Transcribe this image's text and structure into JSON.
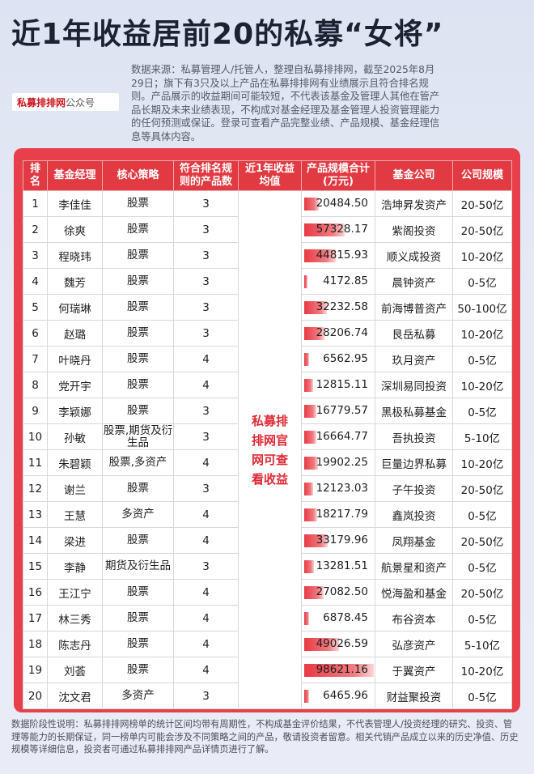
{
  "title": "近1年收益居前20的私募“女将”",
  "source_note": "数据来源：私募管理人/托管人，整理自私募排排网，截至2025年8月29日；旗下有3只及以上产品在私募排排网有业绩展示且符合排名规则。产品展示的收益期间可能较短，不代表该基金及管理人其他在管产品长期及未来业绩表现，不构成对基金经理及基金管理人投资管理能力的任何预测或保证。登录可查看产品完整业绩、产品规模、基金经理信息等具体内容。",
  "logo": {
    "brand": "私募排排网",
    "suffix": "公众号"
  },
  "colors": {
    "accent": "#e23a43",
    "note_text": "#e02a35"
  },
  "table": {
    "headers": [
      "排名",
      "基金经理",
      "核心策略",
      "符合排名规则的产品数",
      "近1年收益均值",
      "产品规模合计(万元)",
      "基金公司",
      "公司规模"
    ],
    "note_lines": [
      "私募排",
      "排网官",
      "网可查",
      "看收益"
    ],
    "rows": [
      {
        "rank": "1",
        "manager": "李佳佳",
        "strategy": "股票",
        "count": "3",
        "scale": "20484.50",
        "scale_value": 20484.5,
        "company": "浩坤昇发资产",
        "size": "20-50亿"
      },
      {
        "rank": "2",
        "manager": "徐爽",
        "strategy": "股票",
        "count": "3",
        "scale": "57328.17",
        "scale_value": 57328.17,
        "company": "紫阁投资",
        "size": "20-50亿"
      },
      {
        "rank": "3",
        "manager": "程晓玮",
        "strategy": "股票",
        "count": "3",
        "scale": "44815.93",
        "scale_value": 44815.93,
        "company": "顺义成投资",
        "size": "10-20亿"
      },
      {
        "rank": "4",
        "manager": "魏芳",
        "strategy": "股票",
        "count": "3",
        "scale": "4172.85",
        "scale_value": 4172.85,
        "company": "晨钟资产",
        "size": "0-5亿"
      },
      {
        "rank": "5",
        "manager": "何瑞琳",
        "strategy": "股票",
        "count": "3",
        "scale": "32232.58",
        "scale_value": 32232.58,
        "company": "前海博普资产",
        "size": "50-100亿"
      },
      {
        "rank": "6",
        "manager": "赵璐",
        "strategy": "股票",
        "count": "3",
        "scale": "28206.74",
        "scale_value": 28206.74,
        "company": "艮岳私募",
        "size": "10-20亿"
      },
      {
        "rank": "7",
        "manager": "叶晓丹",
        "strategy": "股票",
        "count": "4",
        "scale": "6562.95",
        "scale_value": 6562.95,
        "company": "玖月资产",
        "size": "0-5亿"
      },
      {
        "rank": "8",
        "manager": "党开宇",
        "strategy": "股票",
        "count": "4",
        "scale": "12815.11",
        "scale_value": 12815.11,
        "company": "深圳易同投资",
        "size": "10-20亿"
      },
      {
        "rank": "9",
        "manager": "李颖娜",
        "strategy": "股票",
        "count": "3",
        "scale": "16779.57",
        "scale_value": 16779.57,
        "company": "黑极私募基金",
        "size": "0-5亿"
      },
      {
        "rank": "10",
        "manager": "孙敏",
        "strategy": "股票,期货及衍生品",
        "count": "3",
        "scale": "16664.77",
        "scale_value": 16664.77,
        "company": "吾执投资",
        "size": "5-10亿"
      },
      {
        "rank": "11",
        "manager": "朱碧颖",
        "strategy": "股票,多资产",
        "count": "4",
        "scale": "19902.25",
        "scale_value": 19902.25,
        "company": "巨量边界私募",
        "size": "10-20亿"
      },
      {
        "rank": "12",
        "manager": "谢兰",
        "strategy": "股票",
        "count": "3",
        "scale": "12123.03",
        "scale_value": 12123.03,
        "company": "子午投资",
        "size": "20-50亿"
      },
      {
        "rank": "13",
        "manager": "王慧",
        "strategy": "多资产",
        "count": "4",
        "scale": "18217.79",
        "scale_value": 18217.79,
        "company": "鑫岚投资",
        "size": "0-5亿"
      },
      {
        "rank": "14",
        "manager": "梁进",
        "strategy": "股票",
        "count": "4",
        "scale": "33179.96",
        "scale_value": 33179.96,
        "company": "凤翔基金",
        "size": "20-50亿"
      },
      {
        "rank": "15",
        "manager": "李静",
        "strategy": "期货及衍生品",
        "count": "3",
        "scale": "13281.51",
        "scale_value": 13281.51,
        "company": "航景星和资产",
        "size": "0-5亿"
      },
      {
        "rank": "16",
        "manager": "王江宁",
        "strategy": "股票",
        "count": "4",
        "scale": "27082.50",
        "scale_value": 27082.5,
        "company": "悦海盈和基金",
        "size": "20-50亿"
      },
      {
        "rank": "17",
        "manager": "林三秀",
        "strategy": "股票",
        "count": "4",
        "scale": "6878.45",
        "scale_value": 6878.45,
        "company": "布谷资本",
        "size": "0-5亿"
      },
      {
        "rank": "18",
        "manager": "陈志丹",
        "strategy": "股票",
        "count": "4",
        "scale": "49026.59",
        "scale_value": 49026.59,
        "company": "弘彦资产",
        "size": "5-10亿"
      },
      {
        "rank": "19",
        "manager": "刘荟",
        "strategy": "股票",
        "count": "4",
        "scale": "98621.16",
        "scale_value": 98621.16,
        "company": "于翼资产",
        "size": "10-20亿"
      },
      {
        "rank": "20",
        "manager": "沈文君",
        "strategy": "多资产",
        "count": "3",
        "scale": "6465.96",
        "scale_value": 6465.96,
        "company": "财益聚投资",
        "size": "0-5亿"
      }
    ]
  },
  "disclaimer": "数据阶段性说明：私募排排网榜单的统计区间均带有周期性，不构成基金评价结果，不代表管理人/投资经理的研究、投资、管理等能力的长期保证，同一榜单内可能会涉及不同策略之间的产品，敬请投资者留意。相关代销产品成立以来的历史净值、历史规模等详细信息，投资者可通过私募排排网产品详情页进行了解。"
}
